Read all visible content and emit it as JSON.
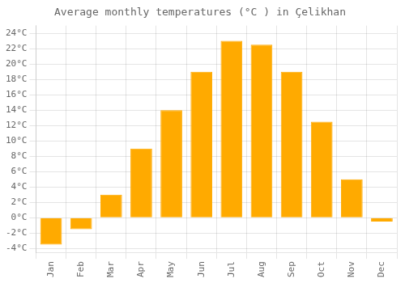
{
  "chart_data": {
    "type": "bar",
    "title": "Average monthly temperatures (°C ) in Çelikhan",
    "categories": [
      "Jan",
      "Feb",
      "Mar",
      "Apr",
      "May",
      "Jun",
      "Jul",
      "Aug",
      "Sep",
      "Oct",
      "Nov",
      "Dec"
    ],
    "values": [
      -3.5,
      -1.5,
      3.0,
      9.0,
      14.0,
      19.0,
      23.0,
      22.5,
      19.0,
      12.5,
      5.0,
      -0.5
    ],
    "color": "#FFAA00",
    "ylim": [
      -4.5,
      25
    ],
    "yticks": [
      {
        "value": -4,
        "label": "-4°C"
      },
      {
        "value": -2,
        "label": "-2°C"
      },
      {
        "value": 0,
        "label": "0°C"
      },
      {
        "value": 2,
        "label": "2°C"
      },
      {
        "value": 4,
        "label": "4°C"
      },
      {
        "value": 6,
        "label": "6°C"
      },
      {
        "value": 8,
        "label": "8°C"
      },
      {
        "value": 10,
        "label": "10°C"
      },
      {
        "value": 12,
        "label": "12°C"
      },
      {
        "value": 14,
        "label": "14°C"
      },
      {
        "value": 16,
        "label": "16°C"
      },
      {
        "value": 18,
        "label": "18°C"
      },
      {
        "value": 20,
        "label": "20°C"
      },
      {
        "value": 22,
        "label": "22°C"
      },
      {
        "value": 24,
        "label": "24°C"
      }
    ],
    "grid": true
  }
}
